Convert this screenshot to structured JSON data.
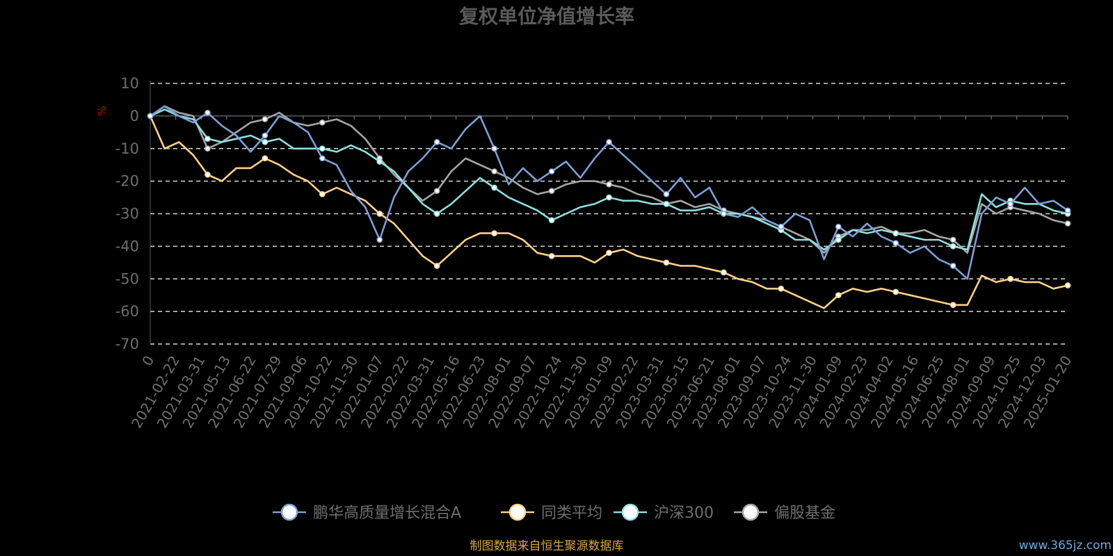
{
  "chart_data": {
    "type": "line",
    "title": "复权单位净值增长率",
    "ylabel": "%",
    "ylim": [
      -70,
      10
    ],
    "yticks": [
      "10",
      "0",
      "-10",
      "-20",
      "-30",
      "-40",
      "-50",
      "-60",
      "-70"
    ],
    "grid": true,
    "legend_position": "bottom",
    "x_ticks": [
      "0",
      "2021-02-22",
      "2021-03-31",
      "2021-05-13",
      "2021-06-22",
      "2021-07-29",
      "2021-09-06",
      "2021-10-22",
      "2021-11-30",
      "2022-01-07",
      "2022-02-22",
      "2022-03-31",
      "2022-05-16",
      "2022-06-23",
      "2022-08-01",
      "2022-09-07",
      "2022-10-24",
      "2022-11-30",
      "2023-01-09",
      "2023-02-22",
      "2023-03-31",
      "2023-05-15",
      "2023-06-21",
      "2023-08-01",
      "2023-09-07",
      "2023-10-24",
      "2023-11-30",
      "2024-01-09",
      "2024-02-23",
      "2024-04-02",
      "2024-05-16",
      "2024-06-25",
      "2024-08-01",
      "2024-09-09",
      "2024-10-25",
      "2024-12-03",
      "2025-01-20"
    ],
    "series": [
      {
        "name": "鹏华高质量增长混合A",
        "color": "#7f9fd6",
        "values": [
          0,
          3,
          0,
          -2,
          1,
          -3,
          -6,
          -11,
          -6,
          0,
          -2,
          -5,
          -13,
          -15,
          -23,
          -28,
          -38,
          -25,
          -17,
          -13,
          -8,
          -10,
          -4,
          0,
          -10,
          -21,
          -16,
          -20,
          -17,
          -14,
          -19,
          -13,
          -8,
          -12,
          -16,
          -20,
          -24,
          -19,
          -25,
          -22,
          -30,
          -31,
          -28,
          -32,
          -34,
          -30,
          -32,
          -44,
          -34,
          -37,
          -33,
          -37,
          -39,
          -42,
          -40,
          -44,
          -46,
          -50,
          -30,
          -25,
          -27,
          -22,
          -27,
          -26,
          -29
        ]
      },
      {
        "name": "同类平均",
        "color": "#ffd18a",
        "values": [
          0,
          -10,
          -8,
          -12,
          -18,
          -20,
          -16,
          -16,
          -13,
          -15,
          -18,
          -20,
          -24,
          -22,
          -24,
          -26,
          -30,
          -33,
          -38,
          -43,
          -46,
          -42,
          -38,
          -36,
          -36,
          -36,
          -38,
          -42,
          -43,
          -43,
          -43,
          -45,
          -42,
          -41,
          -43,
          -44,
          -45,
          -46,
          -46,
          -47,
          -48,
          -50,
          -51,
          -53,
          -53,
          -55,
          -57,
          -59,
          -55,
          -53,
          -54,
          -53,
          -54,
          -55,
          -56,
          -57,
          -58,
          -58,
          -49,
          -51,
          -50,
          -51,
          -51,
          -53,
          -52
        ]
      },
      {
        "name": "沪深300",
        "color": "#8fe0e0",
        "values": [
          0,
          2,
          0,
          -1,
          -7,
          -8,
          -7,
          -6,
          -8,
          -7,
          -10,
          -10,
          -10,
          -11,
          -9,
          -11,
          -14,
          -17,
          -22,
          -27,
          -30,
          -27,
          -23,
          -19,
          -22,
          -25,
          -27,
          -29,
          -32,
          -30,
          -28,
          -27,
          -25,
          -26,
          -26,
          -27,
          -27,
          -29,
          -29,
          -28,
          -30,
          -30,
          -31,
          -33,
          -35,
          -38,
          -38,
          -41,
          -38,
          -35,
          -36,
          -35,
          -36,
          -37,
          -38,
          -38,
          -40,
          -41,
          -24,
          -28,
          -26,
          -27,
          -27,
          -29,
          -30
        ]
      },
      {
        "name": "偏股基金",
        "color": "#a6a6a6",
        "values": [
          0,
          3,
          1,
          0,
          -10,
          -8,
          -5,
          -2,
          -1,
          1,
          -2,
          -3,
          -2,
          -1,
          -3,
          -7,
          -13,
          -18,
          -22,
          -26,
          -23,
          -17,
          -13,
          -15,
          -17,
          -19,
          -22,
          -24,
          -23,
          -21,
          -20,
          -20,
          -21,
          -22,
          -24,
          -25,
          -27,
          -26,
          -28,
          -27,
          -29,
          -30,
          -31,
          -32,
          -34,
          -36,
          -38,
          -42,
          -37,
          -35,
          -35,
          -34,
          -36,
          -36,
          -35,
          -37,
          -38,
          -42,
          -27,
          -30,
          -28,
          -29,
          -30,
          -32,
          -33
        ]
      }
    ]
  },
  "source_note": "制图数据来自恒生聚源数据库",
  "watermark": "www.365jz.com"
}
